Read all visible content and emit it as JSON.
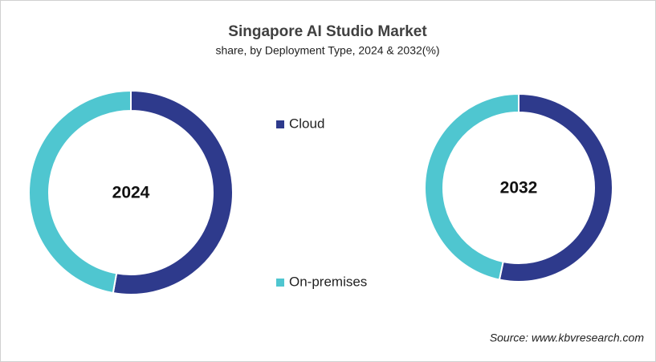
{
  "title": "Singapore AI Studio Market",
  "subtitle": "share, by Deployment Type, 2024 & 2032(%)",
  "source": "Source: www.kbvresearch.com",
  "chart_data": [
    {
      "type": "donut",
      "center_label": "2024",
      "categories": [
        "Cloud",
        "On-premises"
      ],
      "values": [
        52.8,
        47.2
      ],
      "colors": [
        "#2e3a8c",
        "#4fc6d0"
      ]
    },
    {
      "type": "donut",
      "center_label": "2032",
      "categories": [
        "Cloud",
        "On-premises"
      ],
      "values": [
        53.3,
        46.7
      ],
      "colors": [
        "#2e3a8c",
        "#4fc6d0"
      ]
    }
  ]
}
